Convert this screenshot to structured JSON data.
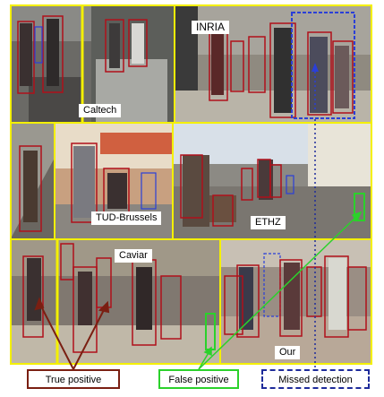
{
  "datasets": {
    "caltech": "Caltech",
    "inria": "INRIA",
    "tud": "TUD-Brussels",
    "ethz": "ETHZ",
    "caviar": "Caviar",
    "ours": "Our"
  },
  "legend": {
    "true_positive": "True positive",
    "false_positive": "False positive",
    "missed_detection": "Missed detection"
  },
  "colors": {
    "true_positive": "#7a1f12",
    "false_positive": "#2bd12b",
    "missed_detection": "#1e2b9a",
    "panel_border": "#f4f000"
  }
}
